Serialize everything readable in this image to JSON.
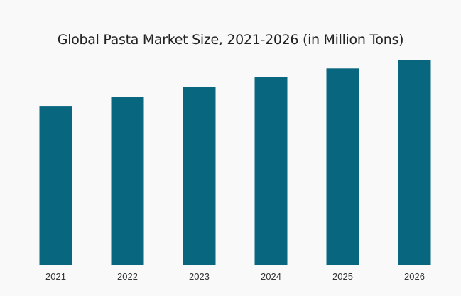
{
  "chart_data": {
    "type": "bar",
    "title": "Global Pasta Market Size, 2021-2026 (in Million Tons)",
    "categories": [
      "2021",
      "2022",
      "2023",
      "2024",
      "2025",
      "2026"
    ],
    "values": [
      17.8,
      18.9,
      20.0,
      21.1,
      22.1,
      23.0
    ],
    "ylim": [
      0,
      25
    ],
    "xlabel": "",
    "ylabel": "",
    "grid": false,
    "colors": {
      "bar": "#08667f",
      "axis": "#555555"
    }
  }
}
